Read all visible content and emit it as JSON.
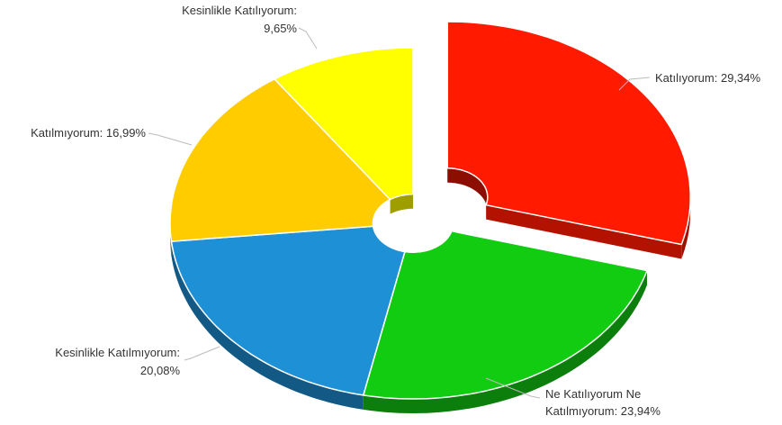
{
  "chart_data": {
    "type": "pie",
    "title": "",
    "style": "3d-donut",
    "exploded": "Katılıyorum",
    "slices": [
      {
        "name": "Katılıyorum",
        "value": 29.34,
        "color": "#ff1a00",
        "label_lines": [
          "Katılıyorum: 29,34%"
        ]
      },
      {
        "name": "Ne Katılıyorum Ne Katılmıyorum",
        "value": 23.94,
        "color": "#11cc11",
        "label_lines": [
          "Ne Katılıyorum Ne",
          "Katılmıyorum: 23,94%"
        ]
      },
      {
        "name": "Kesinlikle Katılmıyorum",
        "value": 20.08,
        "color": "#1e90d6",
        "label_lines": [
          "Kesinlikle Katılmıyorum:",
          "20,08%"
        ]
      },
      {
        "name": "Katılmıyorum",
        "value": 16.99,
        "color": "#ffcc00",
        "label_lines": [
          "Katılmıyorum: 16,99%"
        ]
      },
      {
        "name": "Kesinlikle Katılıyorum",
        "value": 9.65,
        "color": "#ffff00",
        "label_lines": [
          "Kesinlikle Katılıyorum:",
          "9,65%"
        ]
      }
    ]
  }
}
